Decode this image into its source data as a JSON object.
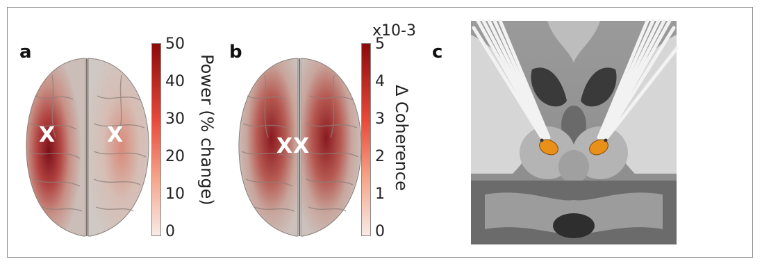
{
  "panels": {
    "a": {
      "label": "a",
      "colorbar": {
        "title": "Power (% change)",
        "ticks": [
          "50",
          "40",
          "30",
          "20",
          "10",
          "0"
        ],
        "colors": [
          "#8b0a0a",
          "#e84a3a",
          "#f5a58a",
          "#f7ebe6"
        ]
      },
      "markers": [
        "X",
        "X"
      ]
    },
    "b": {
      "label": "b",
      "colorbar": {
        "title": "Δ Coherence",
        "multiplier": "x10-3",
        "ticks": [
          "5",
          "4",
          "3",
          "2",
          "1",
          "0"
        ],
        "colors": [
          "#8b0a0a",
          "#e84a3a",
          "#f5a58a",
          "#f7ebe6"
        ]
      },
      "markers": [
        "X",
        "X"
      ]
    },
    "c": {
      "label": "c"
    }
  }
}
